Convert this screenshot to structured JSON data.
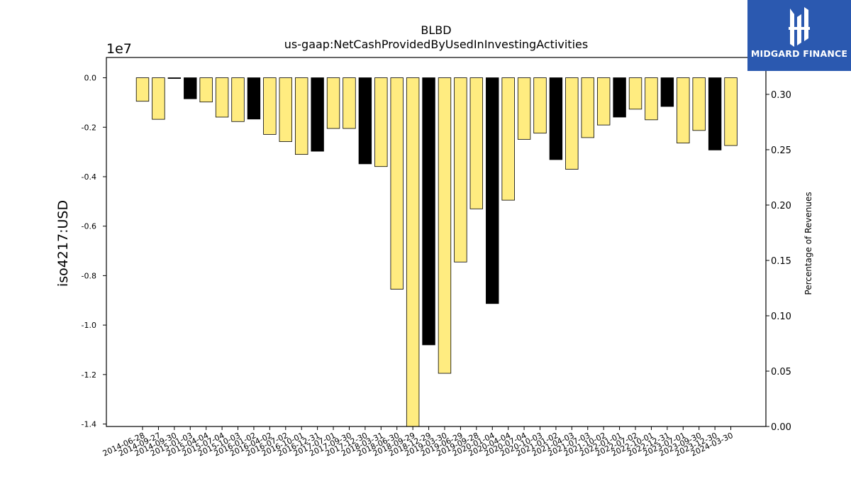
{
  "chart_data": {
    "type": "bar",
    "title": "BLBD",
    "subtitle": "us-gaap:NetCashProvidedByUsedInInvestingActivities",
    "ylabel": "iso4217:USD",
    "y2label": "Percentage of Revenues",
    "offset_label": "1e7",
    "ylim": [
      -14100000,
      820000
    ],
    "y2lim": [
      0,
      0.3333
    ],
    "yticks": [
      0.0,
      -0.2,
      -0.4,
      -0.6,
      -0.8,
      -1.0,
      -1.2,
      -1.4
    ],
    "y2ticks": [
      0.0,
      0.05,
      0.1,
      0.15,
      0.2,
      0.25,
      0.3
    ],
    "categories": [
      "2014-06-28",
      "2014-09-27",
      "2014-09-30",
      "2015-01-03",
      "2015-04-04",
      "2015-07-04",
      "2015-10-03",
      "2016-01-02",
      "2016-04-02",
      "2016-07-02",
      "2016-10-01",
      "2016-12-31",
      "2017-07-01",
      "2017-09-30",
      "2017-12-30",
      "2018-03-31",
      "2018-06-30",
      "2018-09-29",
      "2018-12-29",
      "2019-03-30",
      "2019-06-29",
      "2019-09-28",
      "2020-01-04",
      "2020-04-04",
      "2020-07-04",
      "2020-10-03",
      "2021-01-02",
      "2021-04-03",
      "2021-07-03",
      "2021-10-02",
      "2022-01-01",
      "2022-07-02",
      "2022-10-01",
      "2022-12-31",
      "2023-07-01",
      "2023-09-30",
      "2023-12-30",
      "2024-03-30"
    ],
    "values": [
      -950000,
      -1680000,
      -30000,
      -850000,
      -980000,
      -1590000,
      -1770000,
      -1670000,
      -2290000,
      -2580000,
      -3100000,
      -2970000,
      -2050000,
      -2050000,
      -3480000,
      -3590000,
      -8550000,
      -14100000,
      -10800000,
      -11950000,
      -7450000,
      -5300000,
      -9130000,
      -4950000,
      -2490000,
      -2240000,
      -3310000,
      -3700000,
      -2420000,
      -1910000,
      -1590000,
      -1270000,
      -1700000,
      -1160000,
      -2640000,
      -2130000,
      -2920000,
      -2740000
    ],
    "annual": [
      false,
      false,
      true,
      true,
      false,
      false,
      false,
      true,
      false,
      false,
      false,
      true,
      false,
      false,
      true,
      false,
      false,
      false,
      true,
      false,
      false,
      false,
      true,
      false,
      false,
      false,
      true,
      false,
      false,
      false,
      true,
      false,
      false,
      true,
      false,
      false,
      true,
      false
    ],
    "colors": {
      "quarter": "#ffec80",
      "annual": "#000000",
      "edge": "#000000"
    }
  },
  "logo": {
    "text": "MIDGARD FINANCE",
    "color": "#2b59b0"
  }
}
